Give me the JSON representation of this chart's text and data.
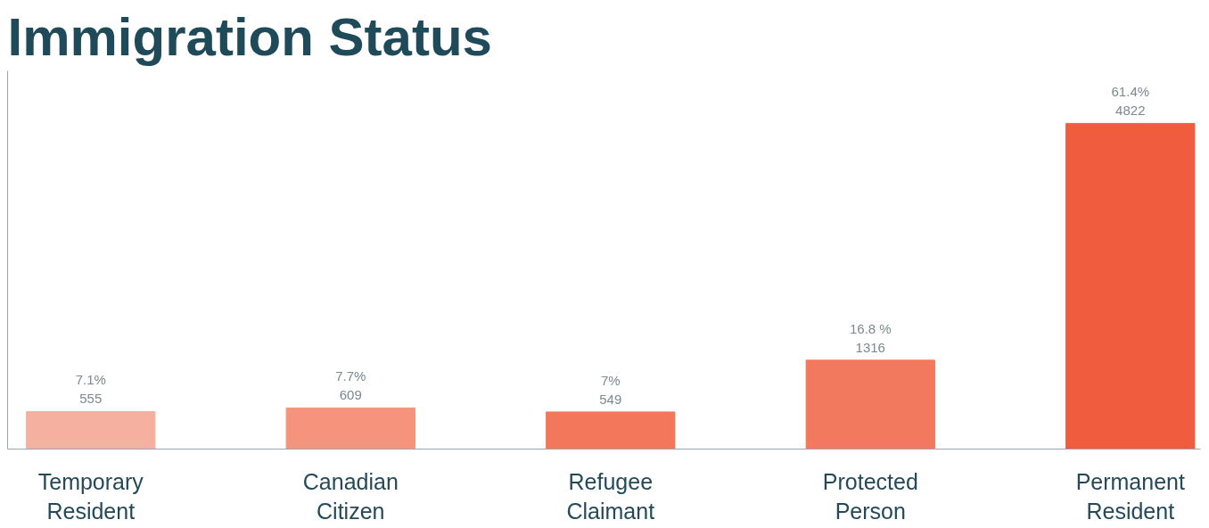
{
  "chart_data": {
    "type": "bar",
    "title": "Immigration Status",
    "categories": [
      "Temporary Resident",
      "Canadian Citizen",
      "Refugee Claimant",
      "Protected Person",
      "Permanent Resident"
    ],
    "values": [
      555,
      609,
      549,
      1316,
      4822
    ],
    "value_labels": [
      "7.1%\n555",
      "7.7%\n609",
      "7%\n549",
      "16.8 %\n1316",
      "61.4%\n4822"
    ],
    "colors": [
      "#f6b0a0",
      "#f5937d",
      "#f2775b",
      "#f2795e",
      "#f05c3e"
    ],
    "ylim": [
      0,
      5600
    ],
    "tick_labels": "x",
    "grid": false
  }
}
